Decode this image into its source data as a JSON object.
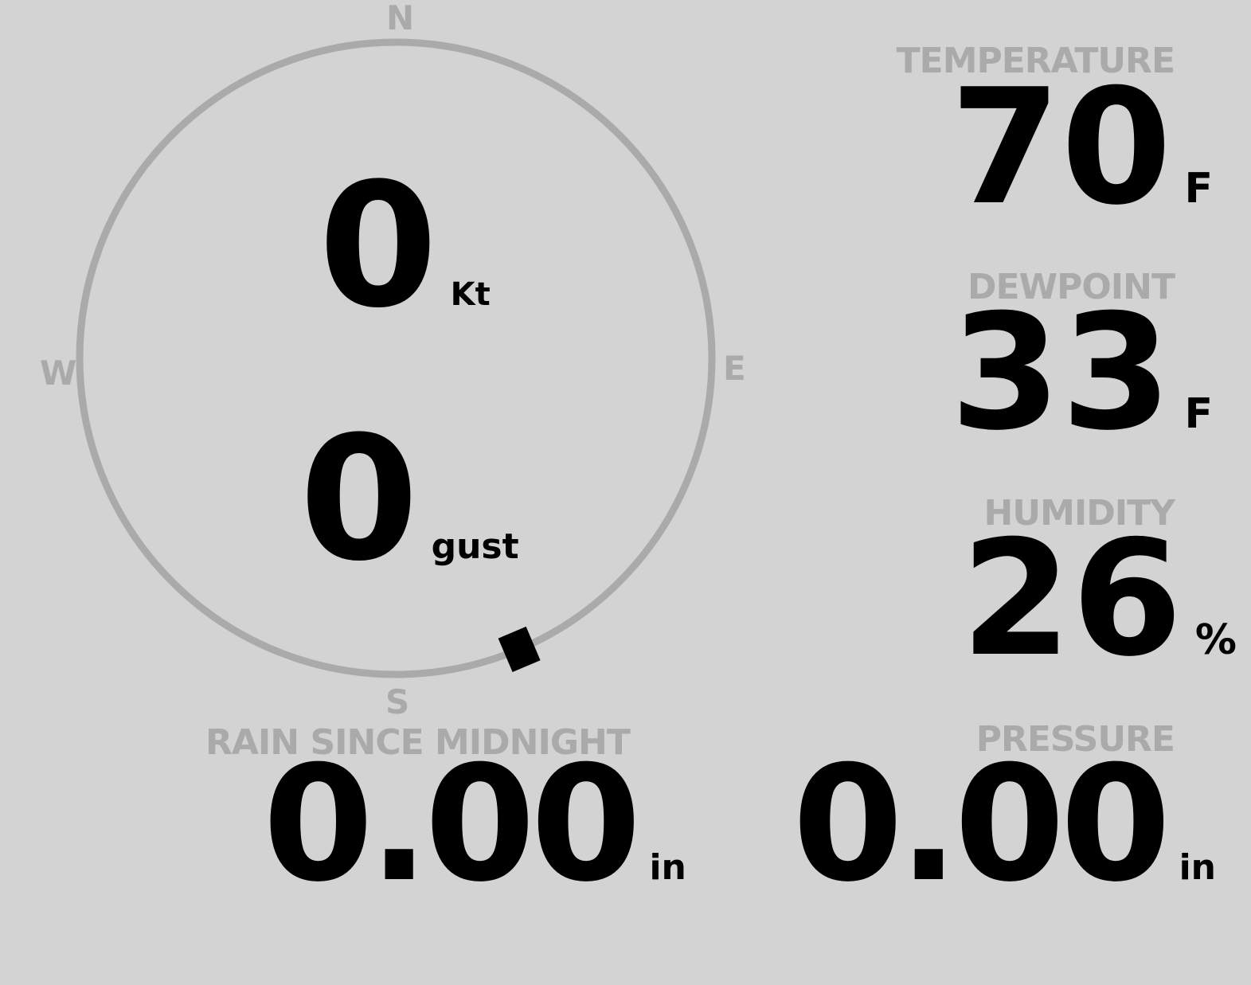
{
  "colors": {
    "background": "#d3d3d3",
    "label": "#aaaaaa",
    "value": "#000000",
    "ring": "#aaaaaa"
  },
  "wind": {
    "compass": {
      "n": "N",
      "e": "E",
      "s": "S",
      "w": "W"
    },
    "speed": "0",
    "speed_unit": "Kt",
    "gust": "0",
    "gust_unit": "gust",
    "direction_degrees": 157
  },
  "temperature": {
    "label": "TEMPERATURE",
    "value": "70",
    "unit": "F"
  },
  "dewpoint": {
    "label": "DEWPOINT",
    "value": "33",
    "unit": "F"
  },
  "humidity": {
    "label": "HUMIDITY",
    "value": "26",
    "unit": "%"
  },
  "rain": {
    "label": "RAIN SINCE MIDNIGHT",
    "value": "0.00",
    "unit": "in"
  },
  "pressure": {
    "label": "PRESSURE",
    "value": "0.00",
    "unit": "in"
  }
}
